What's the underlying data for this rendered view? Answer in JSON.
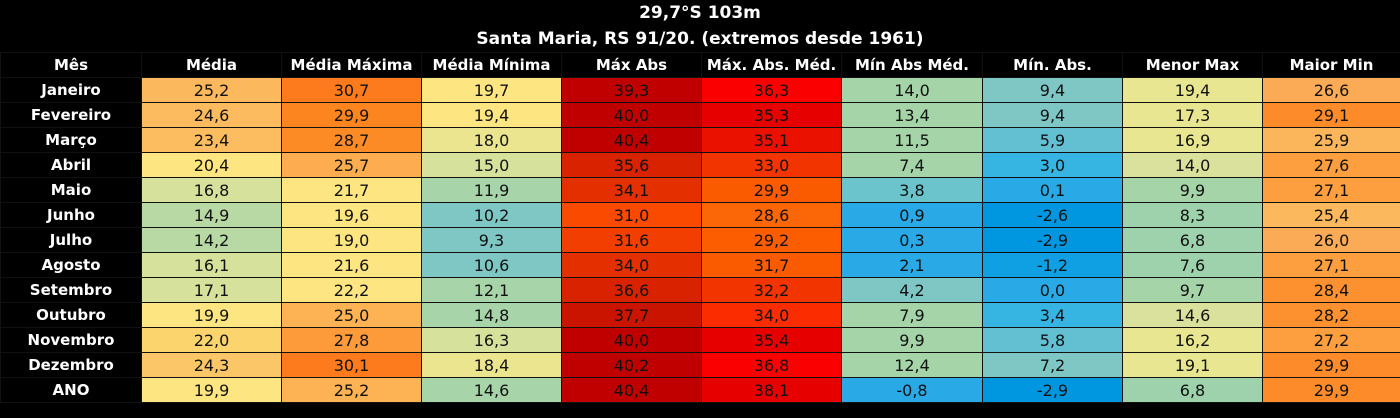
{
  "title_line1": "29,7°S 103m",
  "title_line2": "Santa Maria, RS 91/20. (extremos desde 1961)",
  "columns": [
    "Mês",
    "Média",
    "Média Máxima",
    "Média Mínima",
    "Máx Abs",
    "Máx. Abs. Méd.",
    "Mín Abs Méd.",
    "Mín. Abs.",
    "Menor Max",
    "Maior Min"
  ],
  "rows": [
    {
      "month": "Janeiro",
      "values": [
        "25,2",
        "30,7",
        "19,7",
        "39,3",
        "36,3",
        "14,0",
        "9,4",
        "19,4",
        "26,6"
      ]
    },
    {
      "month": "Fevereiro",
      "values": [
        "24,6",
        "29,9",
        "19,4",
        "40,0",
        "35,3",
        "13,4",
        "9,4",
        "17,3",
        "29,1"
      ]
    },
    {
      "month": "Março",
      "values": [
        "23,4",
        "28,7",
        "18,0",
        "40,4",
        "35,1",
        "11,5",
        "5,9",
        "16,9",
        "25,9"
      ]
    },
    {
      "month": "Abril",
      "values": [
        "20,4",
        "25,7",
        "15,0",
        "35,6",
        "33,0",
        "7,4",
        "3,0",
        "14,0",
        "27,6"
      ]
    },
    {
      "month": "Maio",
      "values": [
        "16,8",
        "21,7",
        "11,9",
        "34,1",
        "29,9",
        "3,8",
        "0,1",
        "9,9",
        "27,1"
      ]
    },
    {
      "month": "Junho",
      "values": [
        "14,9",
        "19,6",
        "10,2",
        "31,0",
        "28,6",
        "0,9",
        "-2,6",
        "8,3",
        "25,4"
      ]
    },
    {
      "month": "Julho",
      "values": [
        "14,2",
        "19,0",
        "9,3",
        "31,6",
        "29,2",
        "0,3",
        "-2,9",
        "6,8",
        "26,0"
      ]
    },
    {
      "month": "Agosto",
      "values": [
        "16,1",
        "21,6",
        "10,6",
        "34,0",
        "31,7",
        "2,1",
        "-1,2",
        "7,6",
        "27,1"
      ]
    },
    {
      "month": "Setembro",
      "values": [
        "17,1",
        "22,2",
        "12,1",
        "36,6",
        "32,2",
        "4,2",
        "0,0",
        "9,7",
        "28,4"
      ]
    },
    {
      "month": "Outubro",
      "values": [
        "19,9",
        "25,0",
        "14,8",
        "37,7",
        "34,0",
        "7,9",
        "3,4",
        "14,6",
        "28,2"
      ]
    },
    {
      "month": "Novembro",
      "values": [
        "22,0",
        "27,8",
        "16,3",
        "40,0",
        "35,4",
        "9,9",
        "5,8",
        "16,2",
        "27,2"
      ]
    },
    {
      "month": "Dezembro",
      "values": [
        "24,3",
        "30,1",
        "18,4",
        "40,2",
        "36,8",
        "12,4",
        "7,2",
        "19,1",
        "29,9"
      ]
    },
    {
      "month": "ANO",
      "values": [
        "19,9",
        "25,2",
        "14,6",
        "40,4",
        "38,1",
        "-0,8",
        "-2,9",
        "6,8",
        "29,9"
      ]
    }
  ],
  "colors": [
    [
      "#fbb85c",
      "#fd7a1d",
      "#fde581",
      "#c00000",
      "#fb0000",
      "#a6d4a9",
      "#7fc7c4",
      "#e9e691",
      "#fbab55"
    ],
    [
      "#fbbb5e",
      "#fd851f",
      "#fde581",
      "#c00000",
      "#e60000",
      "#a6d4a9",
      "#7fc7c4",
      "#e9e691",
      "#fd8b2a"
    ],
    [
      "#fbbd5f",
      "#fd8b25",
      "#ebe590",
      "#c00000",
      "#eb1100",
      "#a6d4a9",
      "#63c0d3",
      "#e9e691",
      "#fbb55a"
    ],
    [
      "#fde581",
      "#fdad50",
      "#d6e19c",
      "#d82200",
      "#f23500",
      "#a6d4a9",
      "#36b4e2",
      "#d9e19c",
      "#fd9e3f"
    ],
    [
      "#d6e19c",
      "#fde581",
      "#a8d4a9",
      "#e42f00",
      "#fb5b00",
      "#6bc3cc",
      "#29a9e5",
      "#a6d4a9",
      "#fd9e3f"
    ],
    [
      "#b8d8a4",
      "#fde581",
      "#7fc7c4",
      "#fa4a00",
      "#fb6606",
      "#29a9e5",
      "#0097e0",
      "#9dd2ac",
      "#fbb85c"
    ],
    [
      "#b8d8a4",
      "#fde581",
      "#7fc7c4",
      "#f23f00",
      "#fb5d00",
      "#29a9e5",
      "#0097e0",
      "#9dd2ac",
      "#fbab55"
    ],
    [
      "#d6e19c",
      "#fde581",
      "#7fc7c4",
      "#e42f00",
      "#fb5b00",
      "#29a9e5",
      "#0fa0e4",
      "#9dd2ac",
      "#fd9e3f"
    ],
    [
      "#d6e19c",
      "#fde581",
      "#a8d4a9",
      "#d82200",
      "#f23500",
      "#7fc7c4",
      "#29a9e5",
      "#a6d4a9",
      "#fd912f"
    ],
    [
      "#fde581",
      "#fdb254",
      "#a8d4a9",
      "#cb1400",
      "#fb2d00",
      "#a6d4a9",
      "#36b4e2",
      "#d9e19c",
      "#fd912f"
    ],
    [
      "#fbd46d",
      "#fd9a3a",
      "#d6e19c",
      "#c00000",
      "#e60000",
      "#a6d4a9",
      "#63c0d3",
      "#e9e691",
      "#fd9e3f"
    ],
    [
      "#fbc667",
      "#fd7a1d",
      "#ebe590",
      "#c00000",
      "#fb0000",
      "#a6d4a9",
      "#7fc7c4",
      "#e9e691",
      "#fd8b2a"
    ],
    [
      "#fde581",
      "#fdb254",
      "#a8d4a9",
      "#c00000",
      "#e60000",
      "#29a9e5",
      "#0097e0",
      "#9dd2ac",
      "#fd8b2a"
    ]
  ]
}
